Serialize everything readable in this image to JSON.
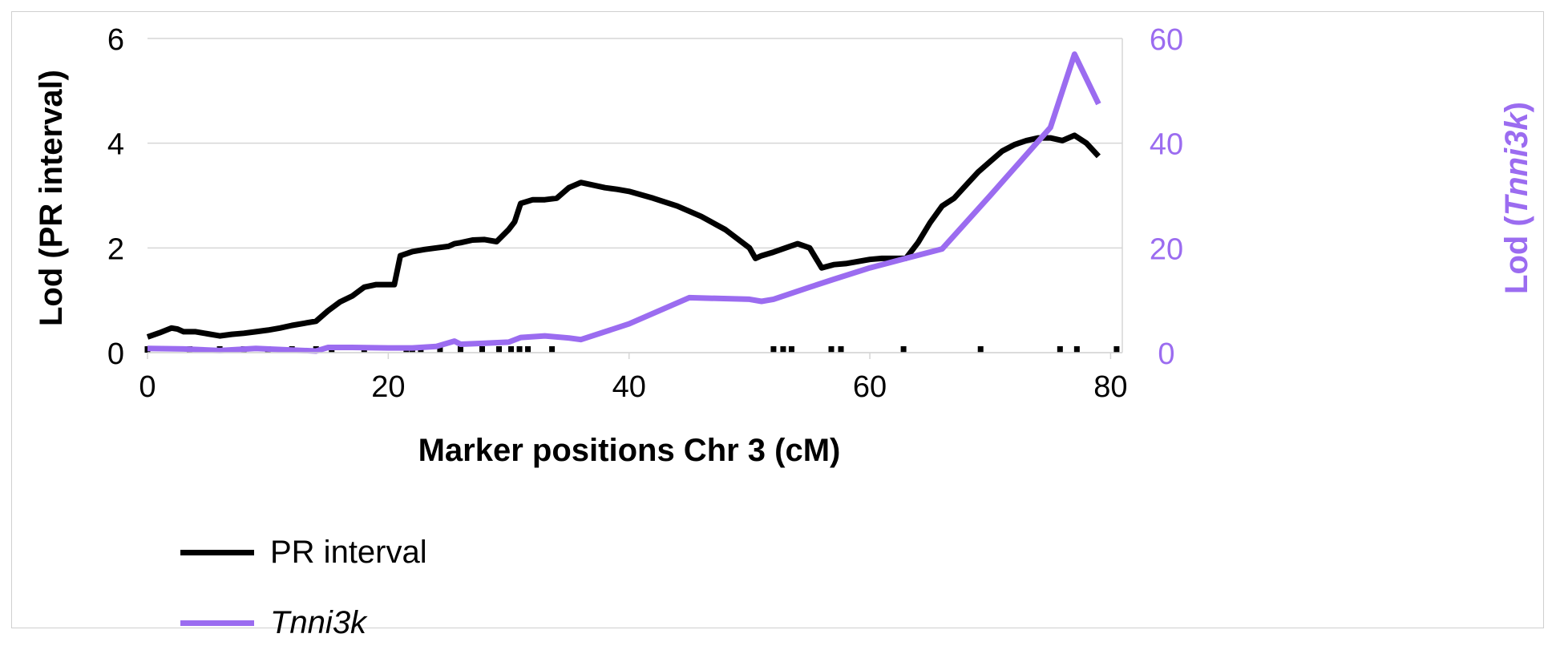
{
  "chart_data": {
    "type": "line",
    "xlabel": "Marker positions Chr 3 (cM)",
    "ylabel_left": "Lod (PR interval)",
    "ylabel_right_prefix": "Lod (",
    "ylabel_right_italic": "Tnni3k",
    "ylabel_right_suffix": ")",
    "xlim": [
      0,
      80
    ],
    "ylim_left": [
      0,
      6
    ],
    "ylim_right": [
      0,
      60
    ],
    "x_ticks": [
      "0",
      "20",
      "40",
      "60",
      "80"
    ],
    "y_left_ticks": [
      "0",
      "2",
      "4",
      "6"
    ],
    "y_right_ticks": [
      "0",
      "20",
      "40",
      "60"
    ],
    "grid": "horizontal",
    "legend_position": "bottom-left",
    "colors": {
      "pr_interval": "#000000",
      "tnni3k": "#9b6cf0",
      "grid": "#d6d6d6",
      "right_axis": "#9b6cf0"
    },
    "series": [
      {
        "name": "PR interval",
        "axis": "left",
        "x": [
          0,
          1,
          2,
          2.5,
          3,
          4,
          5,
          6,
          7,
          8,
          9,
          10,
          11,
          12,
          13,
          14,
          15,
          16,
          17,
          18,
          19,
          20,
          20.5,
          21,
          22,
          23,
          24,
          25,
          25.5,
          26,
          27,
          28,
          29,
          30,
          30.5,
          31,
          32,
          33,
          34,
          35,
          36,
          37,
          38,
          39,
          40,
          42,
          44,
          46,
          48,
          50,
          50.5,
          51,
          52,
          53,
          54,
          55,
          56,
          57,
          58,
          60,
          61,
          62,
          63,
          64,
          65,
          66,
          67,
          68,
          69,
          70,
          71,
          72,
          73,
          74,
          75,
          76,
          77,
          78,
          79
        ],
        "y": [
          0.3,
          0.38,
          0.47,
          0.45,
          0.4,
          0.4,
          0.36,
          0.32,
          0.35,
          0.37,
          0.4,
          0.43,
          0.47,
          0.52,
          0.56,
          0.6,
          0.8,
          0.97,
          1.08,
          1.25,
          1.3,
          1.3,
          1.3,
          1.85,
          1.93,
          1.97,
          2.0,
          2.03,
          2.08,
          2.1,
          2.15,
          2.16,
          2.12,
          2.35,
          2.5,
          2.85,
          2.92,
          2.92,
          2.95,
          3.15,
          3.25,
          3.2,
          3.15,
          3.12,
          3.08,
          2.95,
          2.8,
          2.6,
          2.35,
          2.0,
          1.8,
          1.85,
          1.92,
          2.0,
          2.08,
          2.0,
          1.62,
          1.68,
          1.7,
          1.78,
          1.8,
          1.8,
          1.8,
          2.1,
          2.48,
          2.8,
          2.95,
          3.2,
          3.45,
          3.65,
          3.85,
          3.97,
          4.05,
          4.1,
          4.1,
          4.05,
          4.15,
          4.0,
          3.75
        ]
      },
      {
        "name": "Tnni3k",
        "axis": "right",
        "x": [
          0,
          3,
          6,
          9,
          12,
          14,
          15,
          17,
          20,
          22,
          24,
          25.5,
          26,
          28,
          30,
          31,
          33,
          35,
          36,
          40,
          45,
          50,
          51,
          52,
          55,
          57,
          60,
          63,
          66,
          70,
          75,
          77,
          79
        ],
        "y": [
          0.8,
          0.7,
          0.4,
          0.8,
          0.5,
          0.3,
          1.0,
          1.0,
          0.9,
          0.9,
          1.2,
          2.2,
          1.6,
          1.8,
          2.0,
          2.9,
          3.2,
          2.8,
          2.5,
          5.5,
          10.5,
          10.2,
          9.8,
          10.2,
          12.5,
          14.0,
          16.2,
          18.0,
          19.8,
          30.0,
          43.0,
          57.0,
          47.5
        ]
      }
    ],
    "marker_positions": [
      0,
      3.5,
      6,
      8,
      10,
      12,
      14,
      15.3,
      18,
      21.5,
      22,
      22.7,
      24.3,
      26,
      27.8,
      29.2,
      30.2,
      30.9,
      31.6,
      33.6,
      52,
      52.8,
      53.5,
      56.8,
      57.6,
      62.8,
      69.2,
      75.8,
      77.2,
      80.5
    ]
  }
}
